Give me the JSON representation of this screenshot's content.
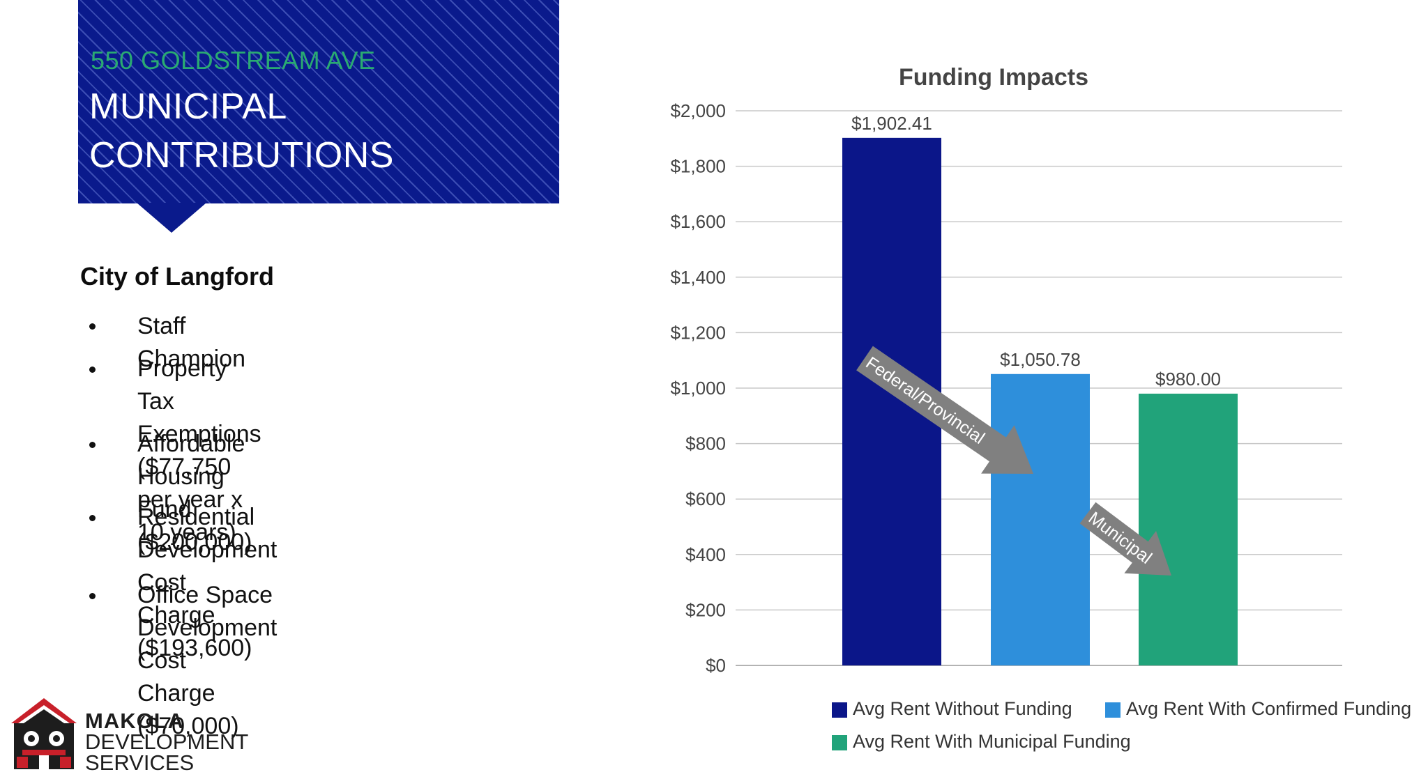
{
  "header": {
    "address": "550 GOLDSTREAM AVE",
    "title_line1": "MUNICIPAL",
    "title_line2": "CONTRIBUTIONS",
    "block_color": "#0a1a8c",
    "address_color": "#2aaa72"
  },
  "content": {
    "org": "City of Langford",
    "bullets": [
      {
        "line1": "Staff Champion",
        "line2": ""
      },
      {
        "line1": "Property Tax Exemptions",
        "line2": "($77,750 per year x 10 years)"
      },
      {
        "line1": "Affordable Housing Fund",
        "line2": "($200,000)"
      },
      {
        "line1": "Residential Development Cost",
        "line2": "Charge ($193,600)"
      },
      {
        "line1": "Office Space Development Cost",
        "line2": "Charge ($70,000)"
      }
    ]
  },
  "logo": {
    "brand": "MAKOLA",
    "line2": "DEVELOPMENT",
    "line3": "SERVICES",
    "icon": "makola-crest-icon"
  },
  "chart_data": {
    "type": "bar",
    "title": "Funding Impacts",
    "xlabel": "",
    "ylabel": "",
    "ylim": [
      0,
      2000
    ],
    "y_ticks": [
      0,
      200,
      400,
      600,
      800,
      1000,
      1200,
      1400,
      1600,
      1800,
      2000
    ],
    "y_tick_labels": [
      "$0",
      "$200",
      "$400",
      "$600",
      "$800",
      "$1,000",
      "$1,200",
      "$1,400",
      "$1,600",
      "$1,800",
      "$2,000"
    ],
    "grid": true,
    "legend_position": "bottom",
    "series": [
      {
        "name": "Avg Rent Without Funding",
        "value": 1902.41,
        "label": "$1,902.41",
        "color": "#0b1689"
      },
      {
        "name": "Avg Rent With Confirmed Funding",
        "value": 1050.78,
        "label": "$1,050.78",
        "color": "#2e8fdb"
      },
      {
        "name": "Avg Rent With Municipal Funding",
        "value": 980.0,
        "label": "$980.00",
        "color": "#21a37a"
      }
    ],
    "annotations": [
      {
        "text": "Federal/Provincial",
        "type": "arrow",
        "color": "#808080"
      },
      {
        "text": "Municipal",
        "type": "arrow",
        "color": "#808080"
      }
    ]
  }
}
